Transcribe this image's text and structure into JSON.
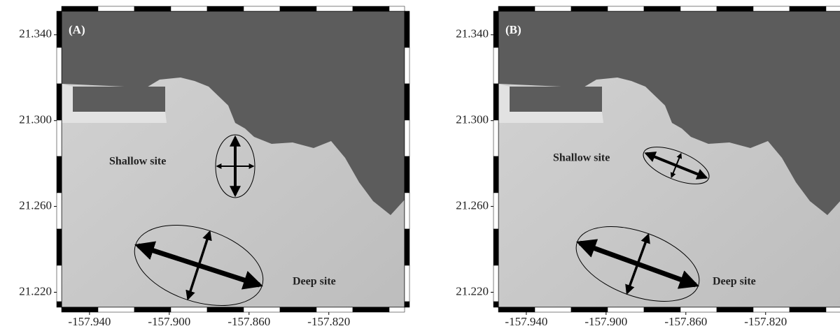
{
  "panels": [
    {
      "label": "(A)",
      "xlim": [
        -157.954,
        -157.782
      ],
      "ylim": [
        21.213,
        21.351
      ],
      "xticks": [
        {
          "value": -157.94,
          "label": "-157.940"
        },
        {
          "value": -157.9,
          "label": "-157.900"
        },
        {
          "value": -157.86,
          "label": "-157.860"
        },
        {
          "value": -157.82,
          "label": "-157.820"
        }
      ],
      "yticks": [
        {
          "value": 21.34,
          "label": "21.340"
        },
        {
          "value": 21.3,
          "label": "21.300"
        },
        {
          "value": 21.26,
          "label": "21.260"
        },
        {
          "value": 21.22,
          "label": "21.220"
        }
      ],
      "sites": [
        "Shallow site",
        "Deep site"
      ]
    },
    {
      "label": "(B)",
      "xlim": [
        -157.954,
        -157.782
      ],
      "ylim": [
        21.213,
        21.351
      ],
      "xticks": [
        {
          "value": -157.94,
          "label": "-157.940"
        },
        {
          "value": -157.9,
          "label": "-157.900"
        },
        {
          "value": -157.86,
          "label": "-157.860"
        },
        {
          "value": -157.82,
          "label": "-157.820"
        }
      ],
      "yticks": [
        {
          "value": 21.34,
          "label": "21.340"
        },
        {
          "value": 21.3,
          "label": "21.300"
        },
        {
          "value": 21.26,
          "label": "21.260"
        },
        {
          "value": 21.22,
          "label": "21.220"
        }
      ],
      "sites": [
        "Shallow site",
        "Deep site"
      ]
    }
  ]
}
